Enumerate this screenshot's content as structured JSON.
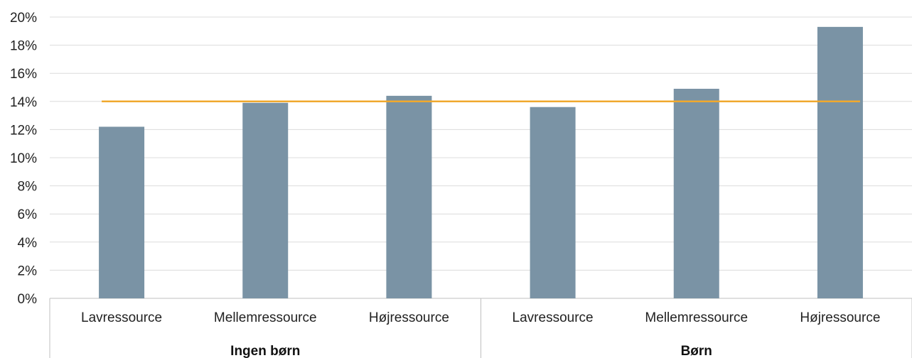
{
  "chart_data": {
    "type": "bar",
    "title": "",
    "xlabel": "",
    "ylabel": "",
    "ylim": [
      0,
      20
    ],
    "y_ticks": [
      "0%",
      "2%",
      "4%",
      "6%",
      "8%",
      "10%",
      "12%",
      "14%",
      "16%",
      "18%",
      "20%"
    ],
    "y_tick_values": [
      0,
      2,
      4,
      6,
      8,
      10,
      12,
      14,
      16,
      18,
      20
    ],
    "grid": true,
    "groups": [
      {
        "label": "Ingen børn",
        "categories": [
          "Lavressource",
          "Mellemressource",
          "Højressource"
        ]
      },
      {
        "label": "Børn",
        "categories": [
          "Lavressource",
          "Mellemressource",
          "Højressource"
        ]
      }
    ],
    "categories": [
      "Lavressource",
      "Mellemressource",
      "Højressource",
      "Lavressource",
      "Mellemressource",
      "Højressource"
    ],
    "values": [
      12.2,
      13.9,
      14.4,
      13.6,
      14.9,
      19.3
    ],
    "reference_line": {
      "value": 14.0
    },
    "colors": {
      "bar": "#7a93a5",
      "line": "#f0a92e",
      "grid": "#dcdcdc",
      "axis": "#bfbfbf"
    }
  }
}
